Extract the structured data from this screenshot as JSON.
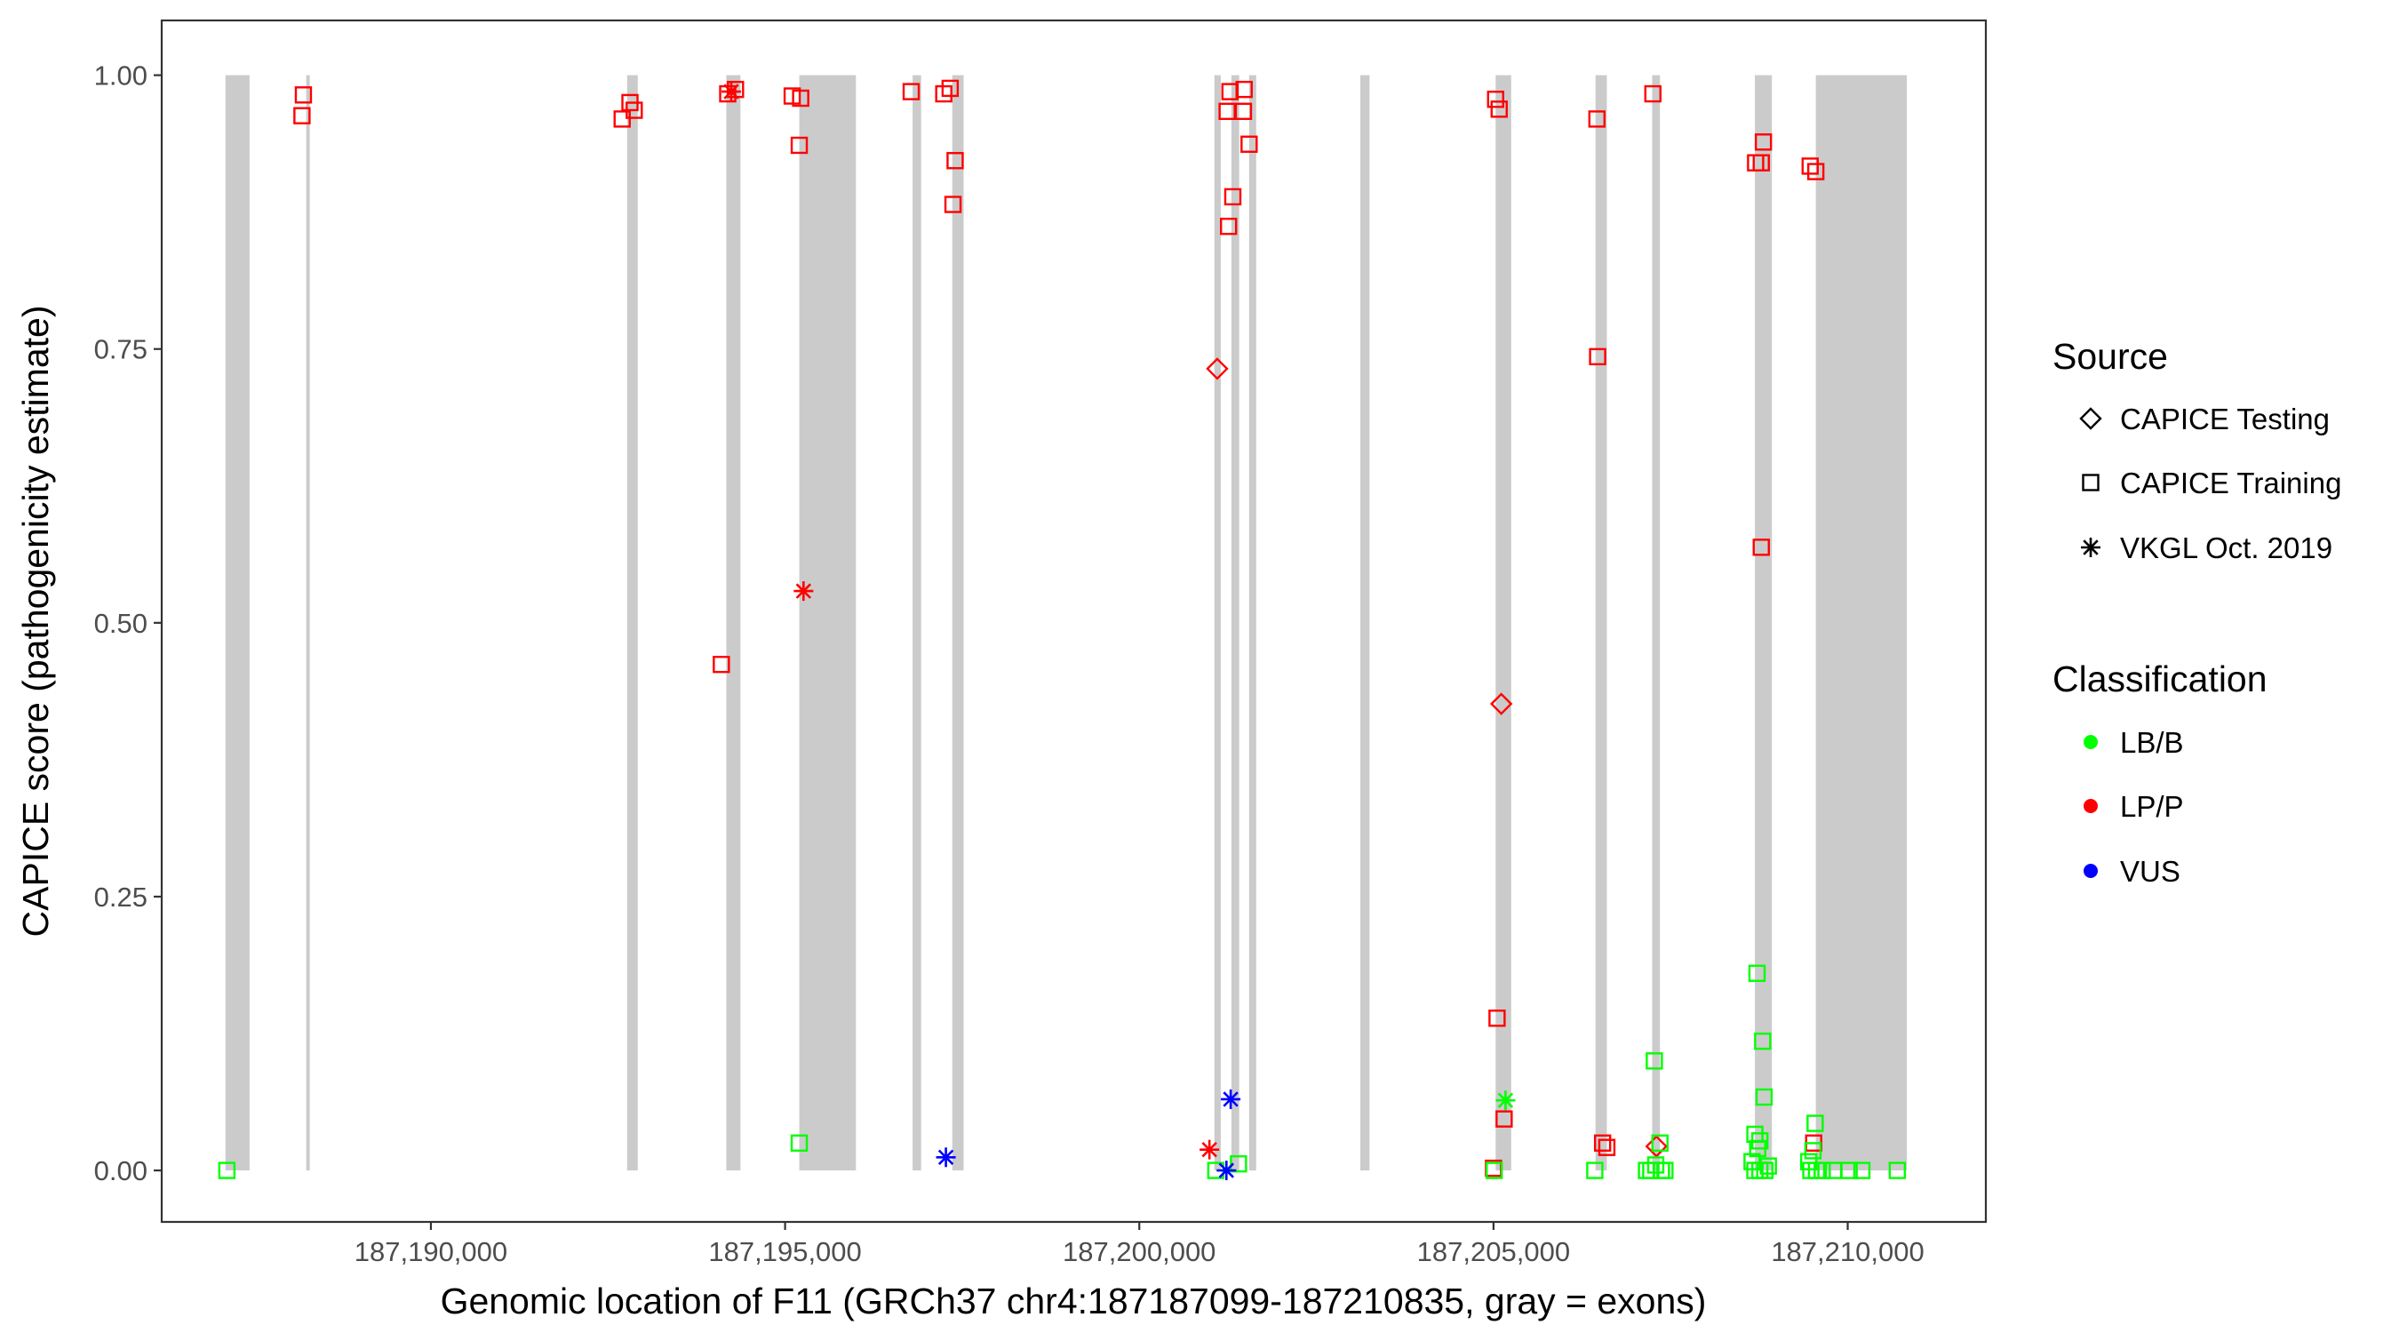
{
  "chart_data": {
    "type": "scatter",
    "xlabel": "Genomic location of F11 (GRCh37 chr4:187187099-187210835, gray = exons)",
    "ylabel": "CAPICE score (pathogenicity estimate)",
    "xlim": [
      187186200,
      187211950
    ],
    "ylim": [
      -0.047,
      1.05
    ],
    "x_ticks": [
      187190000,
      187195000,
      187200000,
      187205000,
      187210000
    ],
    "x_tick_labels": [
      "187,190,000",
      "187,195,000",
      "187,200,000",
      "187,205,000",
      "187,210,000"
    ],
    "y_ticks": [
      0,
      0.25,
      0.5,
      0.75,
      1.0
    ],
    "y_tick_labels": [
      "0.00",
      "0.25",
      "0.50",
      "0.75",
      "1.00"
    ],
    "grid": false,
    "legend_position": "right",
    "exons": [
      [
        187187100,
        187187440
      ],
      [
        187188240,
        187188290
      ],
      [
        187192770,
        187192920
      ],
      [
        187194170,
        187194370
      ],
      [
        187195200,
        187196000
      ],
      [
        187196800,
        187196920
      ],
      [
        187197360,
        187197520
      ],
      [
        187201060,
        187201150
      ],
      [
        187201300,
        187201410
      ],
      [
        187201550,
        187201650
      ],
      [
        187203120,
        187203250
      ],
      [
        187205030,
        187205250
      ],
      [
        187206440,
        187206600
      ],
      [
        187207240,
        187207350
      ],
      [
        187208690,
        187208930
      ],
      [
        187209550,
        187210835
      ]
    ],
    "legend": {
      "source_title": "Source",
      "source_items": [
        {
          "label": "CAPICE Testing",
          "shape": "diamond"
        },
        {
          "label": "CAPICE Training",
          "shape": "square"
        },
        {
          "label": "VKGL Oct. 2019",
          "shape": "asterisk"
        }
      ],
      "class_title": "Classification",
      "class_items": [
        {
          "label": "LB/B",
          "color": "#00ff00"
        },
        {
          "label": "LP/P",
          "color": "#ff0000"
        },
        {
          "label": "VUS",
          "color": "#0000ff"
        }
      ]
    },
    "colors": {
      "LB/B": "#00ff00",
      "LP/P": "#ff0000",
      "VUS": "#0000ff",
      "exon": "#cbcbcb"
    },
    "points": [
      {
        "x": 187187120,
        "y": 0.0,
        "source": "CAPICE Training",
        "class": "LB/B"
      },
      {
        "x": 187188200,
        "y": 0.982,
        "source": "CAPICE Training",
        "class": "LP/P"
      },
      {
        "x": 187188180,
        "y": 0.963,
        "source": "CAPICE Training",
        "class": "LP/P"
      },
      {
        "x": 187192700,
        "y": 0.96,
        "source": "CAPICE Training",
        "class": "LP/P"
      },
      {
        "x": 187192810,
        "y": 0.975,
        "source": "CAPICE Training",
        "class": "LP/P"
      },
      {
        "x": 187192870,
        "y": 0.968,
        "source": "CAPICE Training",
        "class": "LP/P"
      },
      {
        "x": 187194190,
        "y": 0.983,
        "source": "CAPICE Training",
        "class": "LP/P"
      },
      {
        "x": 187194300,
        "y": 0.987,
        "source": "CAPICE Training",
        "class": "LP/P"
      },
      {
        "x": 187194240,
        "y": 0.985,
        "source": "VKGL Oct. 2019",
        "class": "LP/P"
      },
      {
        "x": 187194100,
        "y": 0.462,
        "source": "CAPICE Training",
        "class": "LP/P"
      },
      {
        "x": 187195100,
        "y": 0.981,
        "source": "CAPICE Training",
        "class": "LP/P"
      },
      {
        "x": 187195220,
        "y": 0.979,
        "source": "CAPICE Training",
        "class": "LP/P"
      },
      {
        "x": 187195200,
        "y": 0.936,
        "source": "CAPICE Training",
        "class": "LP/P"
      },
      {
        "x": 187195260,
        "y": 0.529,
        "source": "VKGL Oct. 2019",
        "class": "LP/P"
      },
      {
        "x": 187195200,
        "y": 0.025,
        "source": "CAPICE Training",
        "class": "LB/B"
      },
      {
        "x": 187196780,
        "y": 0.985,
        "source": "CAPICE Training",
        "class": "LP/P"
      },
      {
        "x": 187197240,
        "y": 0.983,
        "source": "CAPICE Training",
        "class": "LP/P"
      },
      {
        "x": 187197330,
        "y": 0.988,
        "source": "CAPICE Training",
        "class": "LP/P"
      },
      {
        "x": 187197400,
        "y": 0.922,
        "source": "CAPICE Training",
        "class": "LP/P"
      },
      {
        "x": 187197370,
        "y": 0.882,
        "source": "CAPICE Training",
        "class": "LP/P"
      },
      {
        "x": 187197270,
        "y": 0.012,
        "source": "VKGL Oct. 2019",
        "class": "VUS"
      },
      {
        "x": 187201100,
        "y": 0.732,
        "source": "CAPICE Testing",
        "class": "LP/P"
      },
      {
        "x": 187201280,
        "y": 0.985,
        "source": "CAPICE Training",
        "class": "LP/P"
      },
      {
        "x": 187201480,
        "y": 0.987,
        "source": "CAPICE Training",
        "class": "LP/P"
      },
      {
        "x": 187201240,
        "y": 0.967,
        "source": "CAPICE Training",
        "class": "LP/P"
      },
      {
        "x": 187201470,
        "y": 0.967,
        "source": "CAPICE Training",
        "class": "LP/P"
      },
      {
        "x": 187201550,
        "y": 0.937,
        "source": "CAPICE Training",
        "class": "LP/P"
      },
      {
        "x": 187201320,
        "y": 0.889,
        "source": "CAPICE Training",
        "class": "LP/P"
      },
      {
        "x": 187201260,
        "y": 0.862,
        "source": "CAPICE Training",
        "class": "LP/P"
      },
      {
        "x": 187200990,
        "y": 0.019,
        "source": "VKGL Oct. 2019",
        "class": "LP/P"
      },
      {
        "x": 187201080,
        "y": 0.0,
        "source": "CAPICE Training",
        "class": "LB/B"
      },
      {
        "x": 187201400,
        "y": 0.006,
        "source": "CAPICE Training",
        "class": "LB/B"
      },
      {
        "x": 187201290,
        "y": 0.065,
        "source": "VKGL Oct. 2019",
        "class": "VUS"
      },
      {
        "x": 187201230,
        "y": 0.0,
        "source": "VKGL Oct. 2019",
        "class": "VUS"
      },
      {
        "x": 187205030,
        "y": 0.978,
        "source": "CAPICE Training",
        "class": "LP/P"
      },
      {
        "x": 187205080,
        "y": 0.969,
        "source": "CAPICE Training",
        "class": "LP/P"
      },
      {
        "x": 187205110,
        "y": 0.426,
        "source": "CAPICE Testing",
        "class": "LP/P"
      },
      {
        "x": 187205050,
        "y": 0.139,
        "source": "CAPICE Training",
        "class": "LP/P"
      },
      {
        "x": 187205150,
        "y": 0.047,
        "source": "CAPICE Training",
        "class": "LP/P"
      },
      {
        "x": 187205170,
        "y": 0.064,
        "source": "VKGL Oct. 2019",
        "class": "LB/B"
      },
      {
        "x": 187205000,
        "y": 0.002,
        "source": "CAPICE Training",
        "class": "LP/P"
      },
      {
        "x": 187205010,
        "y": 0.0,
        "source": "CAPICE Training",
        "class": "LB/B"
      },
      {
        "x": 187206460,
        "y": 0.96,
        "source": "CAPICE Training",
        "class": "LP/P"
      },
      {
        "x": 187206470,
        "y": 0.743,
        "source": "CAPICE Training",
        "class": "LP/P"
      },
      {
        "x": 187206540,
        "y": 0.025,
        "source": "CAPICE Training",
        "class": "LP/P"
      },
      {
        "x": 187206600,
        "y": 0.021,
        "source": "CAPICE Training",
        "class": "LP/P"
      },
      {
        "x": 187206430,
        "y": 0.0,
        "source": "CAPICE Training",
        "class": "LB/B"
      },
      {
        "x": 187207250,
        "y": 0.983,
        "source": "CAPICE Training",
        "class": "LP/P"
      },
      {
        "x": 187207270,
        "y": 0.1,
        "source": "CAPICE Training",
        "class": "LB/B"
      },
      {
        "x": 187207300,
        "y": 0.022,
        "source": "CAPICE Testing",
        "class": "LP/P"
      },
      {
        "x": 187207350,
        "y": 0.025,
        "source": "CAPICE Training",
        "class": "LB/B"
      },
      {
        "x": 187207160,
        "y": 0.0,
        "source": "CAPICE Training",
        "class": "LB/B"
      },
      {
        "x": 187207220,
        "y": 0.0,
        "source": "CAPICE Training",
        "class": "LB/B"
      },
      {
        "x": 187207290,
        "y": 0.005,
        "source": "CAPICE Training",
        "class": "LB/B"
      },
      {
        "x": 187207370,
        "y": 0.0,
        "source": "CAPICE Training",
        "class": "LB/B"
      },
      {
        "x": 187207420,
        "y": 0.0,
        "source": "CAPICE Training",
        "class": "LB/B"
      },
      {
        "x": 187208700,
        "y": 0.92,
        "source": "CAPICE Training",
        "class": "LP/P"
      },
      {
        "x": 187208810,
        "y": 0.939,
        "source": "CAPICE Training",
        "class": "LP/P"
      },
      {
        "x": 187208780,
        "y": 0.92,
        "source": "CAPICE Training",
        "class": "LP/P"
      },
      {
        "x": 187208780,
        "y": 0.569,
        "source": "CAPICE Training",
        "class": "LP/P"
      },
      {
        "x": 187208720,
        "y": 0.18,
        "source": "CAPICE Training",
        "class": "LB/B"
      },
      {
        "x": 187208800,
        "y": 0.118,
        "source": "CAPICE Training",
        "class": "LB/B"
      },
      {
        "x": 187208820,
        "y": 0.067,
        "source": "CAPICE Training",
        "class": "LB/B"
      },
      {
        "x": 187208690,
        "y": 0.033,
        "source": "CAPICE Training",
        "class": "LB/B"
      },
      {
        "x": 187208760,
        "y": 0.027,
        "source": "CAPICE Training",
        "class": "LB/B"
      },
      {
        "x": 187208730,
        "y": 0.02,
        "source": "CAPICE Training",
        "class": "LB/B"
      },
      {
        "x": 187208650,
        "y": 0.008,
        "source": "CAPICE Training",
        "class": "LB/B"
      },
      {
        "x": 187208690,
        "y": 0.0,
        "source": "CAPICE Training",
        "class": "LB/B"
      },
      {
        "x": 187208760,
        "y": 0.0,
        "source": "CAPICE Training",
        "class": "LB/B"
      },
      {
        "x": 187208830,
        "y": 0.0,
        "source": "CAPICE Training",
        "class": "LB/B"
      },
      {
        "x": 187208880,
        "y": 0.004,
        "source": "CAPICE Training",
        "class": "LB/B"
      },
      {
        "x": 187209470,
        "y": 0.917,
        "source": "CAPICE Training",
        "class": "LP/P"
      },
      {
        "x": 187209550,
        "y": 0.912,
        "source": "CAPICE Training",
        "class": "LP/P"
      },
      {
        "x": 187209520,
        "y": 0.025,
        "source": "CAPICE Training",
        "class": "LP/P"
      },
      {
        "x": 187209540,
        "y": 0.043,
        "source": "CAPICE Training",
        "class": "LB/B"
      },
      {
        "x": 187209510,
        "y": 0.018,
        "source": "CAPICE Training",
        "class": "LB/B"
      },
      {
        "x": 187209450,
        "y": 0.008,
        "source": "CAPICE Training",
        "class": "LB/B"
      },
      {
        "x": 187209480,
        "y": 0.0,
        "source": "CAPICE Training",
        "class": "LB/B"
      },
      {
        "x": 187209560,
        "y": 0.0,
        "source": "CAPICE Training",
        "class": "LB/B"
      },
      {
        "x": 187209640,
        "y": 0.0,
        "source": "CAPICE Training",
        "class": "LB/B"
      },
      {
        "x": 187209800,
        "y": 0.0,
        "source": "CAPICE Training",
        "class": "LB/B"
      },
      {
        "x": 187210020,
        "y": 0.0,
        "source": "CAPICE Training",
        "class": "LB/B"
      },
      {
        "x": 187210200,
        "y": 0.0,
        "source": "CAPICE Training",
        "class": "LB/B"
      },
      {
        "x": 187210700,
        "y": 0.0,
        "source": "CAPICE Training",
        "class": "LB/B"
      }
    ]
  }
}
